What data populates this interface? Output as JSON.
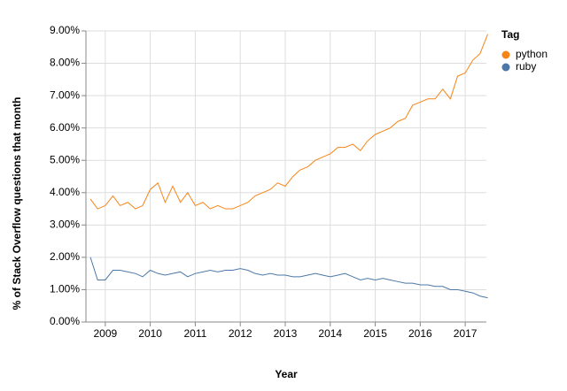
{
  "chart_data": {
    "type": "line",
    "x_label": "Year",
    "y_label": "% of Stack Overflow questions that month",
    "legend_title": "Tag",
    "legend_position": "right",
    "grid": true,
    "xlim": [
      2008.57,
      2017.47
    ],
    "xticks": [
      2009,
      2010,
      2011,
      2012,
      2013,
      2014,
      2015,
      2016,
      2017
    ],
    "ylim": [
      0,
      9
    ],
    "yticks": [
      {
        "value": 0,
        "label": "0.00%"
      },
      {
        "value": 1,
        "label": "1.00%"
      },
      {
        "value": 2,
        "label": "2.00%"
      },
      {
        "value": 3,
        "label": "3.00%"
      },
      {
        "value": 4,
        "label": "4.00%"
      },
      {
        "value": 5,
        "label": "5.00%"
      },
      {
        "value": 6,
        "label": "6.00%"
      },
      {
        "value": 7,
        "label": "7.00%"
      },
      {
        "value": 8,
        "label": "8.00%"
      },
      {
        "value": 9,
        "label": "9.00%"
      }
    ],
    "x": [
      2008.67,
      2008.83,
      2009.0,
      2009.17,
      2009.33,
      2009.5,
      2009.67,
      2009.83,
      2010.0,
      2010.17,
      2010.33,
      2010.5,
      2010.67,
      2010.83,
      2011.0,
      2011.17,
      2011.33,
      2011.5,
      2011.67,
      2011.83,
      2012.0,
      2012.17,
      2012.33,
      2012.5,
      2012.67,
      2012.83,
      2013.0,
      2013.17,
      2013.33,
      2013.5,
      2013.67,
      2013.83,
      2014.0,
      2014.17,
      2014.33,
      2014.5,
      2014.67,
      2014.83,
      2015.0,
      2015.17,
      2015.33,
      2015.5,
      2015.67,
      2015.83,
      2016.0,
      2016.17,
      2016.33,
      2016.5,
      2016.67,
      2016.83,
      2017.0,
      2017.17,
      2017.33,
      2017.5
    ],
    "series": [
      {
        "name": "python",
        "color": "#f58518",
        "values": [
          3.8,
          3.5,
          3.6,
          3.9,
          3.6,
          3.7,
          3.5,
          3.6,
          4.1,
          4.3,
          3.7,
          4.2,
          3.7,
          4.0,
          3.6,
          3.7,
          3.5,
          3.6,
          3.5,
          3.5,
          3.6,
          3.7,
          3.9,
          4.0,
          4.1,
          4.3,
          4.2,
          4.5,
          4.7,
          4.8,
          5.0,
          5.1,
          5.2,
          5.4,
          5.4,
          5.5,
          5.3,
          5.6,
          5.8,
          5.9,
          6.0,
          6.2,
          6.3,
          6.7,
          6.8,
          6.9,
          6.9,
          7.2,
          6.9,
          7.6,
          7.7,
          8.1,
          8.3,
          8.9
        ]
      },
      {
        "name": "ruby",
        "color": "#4c78a8",
        "values": [
          2.0,
          1.3,
          1.3,
          1.6,
          1.6,
          1.55,
          1.5,
          1.4,
          1.6,
          1.5,
          1.45,
          1.5,
          1.55,
          1.4,
          1.5,
          1.55,
          1.6,
          1.55,
          1.6,
          1.6,
          1.65,
          1.6,
          1.5,
          1.45,
          1.5,
          1.45,
          1.45,
          1.4,
          1.4,
          1.45,
          1.5,
          1.45,
          1.4,
          1.45,
          1.5,
          1.4,
          1.3,
          1.35,
          1.3,
          1.35,
          1.3,
          1.25,
          1.2,
          1.2,
          1.15,
          1.15,
          1.1,
          1.1,
          1.0,
          1.0,
          0.95,
          0.9,
          0.8,
          0.75
        ]
      }
    ]
  }
}
